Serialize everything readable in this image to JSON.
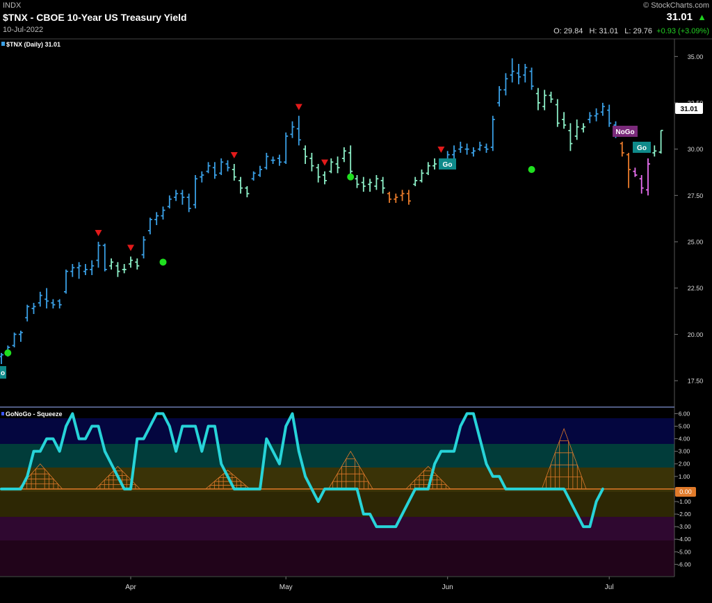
{
  "header": {
    "exchange": "INDX",
    "title": "$TNX - CBOE 10-Year US Treasury Yield",
    "date": "10-Jul-2022",
    "copyright": "© StockCharts.com",
    "last": "31.01",
    "open_label": "O:",
    "open": "29.84",
    "high_label": "H:",
    "high": "31.01",
    "low_label": "L:",
    "low": "29.76",
    "change": "+0.93 (+3.09%)"
  },
  "price_panel": {
    "legend": "$TNX (Daily) 31.01",
    "last_badge": "31.01",
    "y_ticks": [
      "35.00",
      "32.50",
      "30.00",
      "27.50",
      "25.00",
      "22.50",
      "20.00",
      "17.50"
    ],
    "labels": {
      "go": "Go",
      "nogo": "NoGo",
      "go_partial": "o"
    }
  },
  "oscillator_panel": {
    "legend": "GoNoGo - Squeeze",
    "y_ticks": [
      "6.00",
      "5.00",
      "4.00",
      "3.00",
      "2.00",
      "1.00",
      "0.00",
      "-1.00",
      "-2.00",
      "-3.00",
      "-4.00",
      "-5.00",
      "-6.00"
    ],
    "zero_badge": "0.00"
  },
  "x_axis": {
    "labels": [
      "Apr",
      "May",
      "Jun",
      "Jul"
    ]
  },
  "colors": {
    "go_strong": "#3aa0e6",
    "go_weak": "#8df0c8",
    "nogo_weak": "#e87a2a",
    "nogo_strong": "#e86ff0",
    "oscillator_line": "#27d3d8",
    "zero_line": "#e07a2a",
    "up_arrow": "#1fd11f",
    "red_marker": "#e31a1a",
    "green_dot": "#1fe01f"
  },
  "chart_data": [
    {
      "type": "ohlc",
      "series_name": "$TNX (Daily)",
      "ylim": [
        16.3,
        35.8
      ],
      "x_labels": [
        "Apr",
        "May",
        "Jun",
        "Jul"
      ],
      "color_regimes": [
        "go_strong",
        "go_weak",
        "nogo_weak",
        "nogo_strong"
      ],
      "bars": [
        {
          "o": 18.8,
          "h": 19.0,
          "l": 18.4,
          "c": 18.9,
          "k": "go_strong"
        },
        {
          "o": 18.9,
          "h": 19.4,
          "l": 18.8,
          "c": 19.3,
          "k": "go_strong"
        },
        {
          "o": 19.4,
          "h": 20.1,
          "l": 19.3,
          "c": 20.0,
          "k": "go_strong"
        },
        {
          "o": 20.0,
          "h": 20.2,
          "l": 19.6,
          "c": 20.1,
          "k": "go_strong"
        },
        {
          "o": 20.9,
          "h": 21.6,
          "l": 20.7,
          "c": 21.5,
          "k": "go_strong"
        },
        {
          "o": 21.4,
          "h": 21.7,
          "l": 21.1,
          "c": 21.5,
          "k": "go_strong"
        },
        {
          "o": 21.7,
          "h": 22.3,
          "l": 21.5,
          "c": 22.1,
          "k": "go_strong"
        },
        {
          "o": 21.9,
          "h": 22.5,
          "l": 21.4,
          "c": 21.8,
          "k": "go_strong"
        },
        {
          "o": 21.7,
          "h": 21.9,
          "l": 21.4,
          "c": 21.6,
          "k": "go_strong"
        },
        {
          "o": 21.8,
          "h": 21.9,
          "l": 21.4,
          "c": 21.6,
          "k": "go_strong"
        },
        {
          "o": 22.3,
          "h": 23.5,
          "l": 22.2,
          "c": 23.4,
          "k": "go_strong"
        },
        {
          "o": 23.4,
          "h": 23.8,
          "l": 23.1,
          "c": 23.6,
          "k": "go_strong"
        },
        {
          "o": 23.6,
          "h": 23.9,
          "l": 23.0,
          "c": 23.7,
          "k": "go_strong"
        },
        {
          "o": 23.4,
          "h": 23.8,
          "l": 23.2,
          "c": 23.5,
          "k": "go_strong"
        },
        {
          "o": 23.5,
          "h": 24.0,
          "l": 23.2,
          "c": 23.7,
          "k": "go_strong"
        },
        {
          "o": 24.0,
          "h": 25.0,
          "l": 23.6,
          "c": 24.8,
          "k": "go_strong"
        },
        {
          "o": 24.8,
          "h": 24.9,
          "l": 23.4,
          "c": 23.5,
          "k": "go_strong"
        },
        {
          "o": 23.7,
          "h": 24.1,
          "l": 23.5,
          "c": 23.9,
          "k": "go_weak"
        },
        {
          "o": 23.7,
          "h": 23.9,
          "l": 23.1,
          "c": 23.4,
          "k": "go_weak"
        },
        {
          "o": 23.5,
          "h": 23.8,
          "l": 23.3,
          "c": 23.5,
          "k": "go_weak"
        },
        {
          "o": 23.8,
          "h": 24.2,
          "l": 23.6,
          "c": 24.0,
          "k": "go_weak"
        },
        {
          "o": 23.9,
          "h": 24.1,
          "l": 23.5,
          "c": 23.7,
          "k": "go_weak"
        },
        {
          "o": 24.3,
          "h": 25.3,
          "l": 24.1,
          "c": 25.1,
          "k": "go_strong"
        },
        {
          "o": 25.6,
          "h": 26.3,
          "l": 25.4,
          "c": 26.2,
          "k": "go_strong"
        },
        {
          "o": 26.2,
          "h": 26.6,
          "l": 25.9,
          "c": 26.4,
          "k": "go_strong"
        },
        {
          "o": 26.4,
          "h": 26.9,
          "l": 26.2,
          "c": 26.7,
          "k": "go_strong"
        },
        {
          "o": 26.9,
          "h": 27.5,
          "l": 26.8,
          "c": 27.3,
          "k": "go_strong"
        },
        {
          "o": 27.4,
          "h": 27.8,
          "l": 27.2,
          "c": 27.6,
          "k": "go_strong"
        },
        {
          "o": 27.6,
          "h": 27.8,
          "l": 27.0,
          "c": 27.4,
          "k": "go_strong"
        },
        {
          "o": 27.4,
          "h": 27.6,
          "l": 26.6,
          "c": 26.8,
          "k": "go_strong"
        },
        {
          "o": 27.0,
          "h": 28.6,
          "l": 26.8,
          "c": 28.4,
          "k": "go_strong"
        },
        {
          "o": 28.5,
          "h": 28.8,
          "l": 28.2,
          "c": 28.6,
          "k": "go_strong"
        },
        {
          "o": 28.8,
          "h": 29.3,
          "l": 28.7,
          "c": 29.1,
          "k": "go_strong"
        },
        {
          "o": 29.0,
          "h": 29.3,
          "l": 28.4,
          "c": 28.6,
          "k": "go_strong"
        },
        {
          "o": 28.7,
          "h": 29.5,
          "l": 28.6,
          "c": 29.3,
          "k": "go_strong"
        },
        {
          "o": 29.2,
          "h": 29.4,
          "l": 28.8,
          "c": 29.0,
          "k": "go_strong"
        },
        {
          "o": 28.9,
          "h": 29.2,
          "l": 28.3,
          "c": 28.5,
          "k": "go_weak"
        },
        {
          "o": 28.3,
          "h": 28.5,
          "l": 27.6,
          "c": 27.9,
          "k": "go_weak"
        },
        {
          "o": 27.9,
          "h": 28.0,
          "l": 27.4,
          "c": 27.6,
          "k": "go_weak"
        },
        {
          "o": 28.4,
          "h": 28.8,
          "l": 28.3,
          "c": 28.7,
          "k": "go_strong"
        },
        {
          "o": 28.6,
          "h": 29.1,
          "l": 28.5,
          "c": 28.9,
          "k": "go_strong"
        },
        {
          "o": 29.0,
          "h": 29.8,
          "l": 28.9,
          "c": 29.6,
          "k": "go_strong"
        },
        {
          "o": 29.4,
          "h": 29.6,
          "l": 29.2,
          "c": 29.4,
          "k": "go_strong"
        },
        {
          "o": 29.5,
          "h": 29.7,
          "l": 29.1,
          "c": 29.3,
          "k": "go_strong"
        },
        {
          "o": 29.3,
          "h": 30.9,
          "l": 29.2,
          "c": 30.7,
          "k": "go_strong"
        },
        {
          "o": 30.8,
          "h": 31.5,
          "l": 30.6,
          "c": 31.2,
          "k": "go_strong"
        },
        {
          "o": 31.1,
          "h": 31.8,
          "l": 30.2,
          "c": 30.5,
          "k": "go_strong"
        },
        {
          "o": 30.0,
          "h": 30.2,
          "l": 29.2,
          "c": 29.6,
          "k": "go_weak"
        },
        {
          "o": 29.5,
          "h": 29.8,
          "l": 28.8,
          "c": 29.1,
          "k": "go_weak"
        },
        {
          "o": 29.0,
          "h": 29.2,
          "l": 28.2,
          "c": 28.5,
          "k": "go_weak"
        },
        {
          "o": 28.6,
          "h": 28.8,
          "l": 28.1,
          "c": 28.3,
          "k": "go_weak"
        },
        {
          "o": 28.8,
          "h": 29.5,
          "l": 28.7,
          "c": 29.3,
          "k": "go_weak"
        },
        {
          "o": 29.2,
          "h": 29.6,
          "l": 28.7,
          "c": 29.0,
          "k": "go_weak"
        },
        {
          "o": 29.5,
          "h": 30.1,
          "l": 29.3,
          "c": 29.9,
          "k": "go_weak"
        },
        {
          "o": 29.8,
          "h": 30.2,
          "l": 28.6,
          "c": 28.8,
          "k": "go_weak"
        },
        {
          "o": 28.4,
          "h": 28.6,
          "l": 27.9,
          "c": 28.1,
          "k": "go_weak"
        },
        {
          "o": 28.2,
          "h": 28.5,
          "l": 27.7,
          "c": 28.0,
          "k": "go_weak"
        },
        {
          "o": 28.1,
          "h": 28.4,
          "l": 27.7,
          "c": 28.2,
          "k": "go_weak"
        },
        {
          "o": 28.0,
          "h": 28.6,
          "l": 27.8,
          "c": 28.4,
          "k": "go_weak"
        },
        {
          "o": 28.3,
          "h": 28.5,
          "l": 27.6,
          "c": 27.9,
          "k": "go_weak"
        },
        {
          "o": 27.6,
          "h": 27.7,
          "l": 27.1,
          "c": 27.3,
          "k": "nogo_weak"
        },
        {
          "o": 27.3,
          "h": 27.6,
          "l": 27.1,
          "c": 27.4,
          "k": "nogo_weak"
        },
        {
          "o": 27.5,
          "h": 27.8,
          "l": 27.2,
          "c": 27.6,
          "k": "nogo_weak"
        },
        {
          "o": 27.6,
          "h": 27.8,
          "l": 27.0,
          "c": 27.2,
          "k": "nogo_weak"
        },
        {
          "o": 28.1,
          "h": 28.5,
          "l": 28.0,
          "c": 28.3,
          "k": "go_weak"
        },
        {
          "o": 28.3,
          "h": 28.9,
          "l": 28.2,
          "c": 28.7,
          "k": "go_weak"
        },
        {
          "o": 28.7,
          "h": 29.3,
          "l": 28.6,
          "c": 29.1,
          "k": "go_weak"
        },
        {
          "o": 29.1,
          "h": 29.5,
          "l": 28.9,
          "c": 29.2,
          "k": "go_weak"
        },
        {
          "o": 29.2,
          "h": 29.5,
          "l": 29.0,
          "c": 29.3,
          "k": "go_weak"
        },
        {
          "o": 29.4,
          "h": 29.9,
          "l": 29.2,
          "c": 29.7,
          "k": "go_strong"
        },
        {
          "o": 29.7,
          "h": 30.2,
          "l": 29.5,
          "c": 29.9,
          "k": "go_strong"
        },
        {
          "o": 30.0,
          "h": 30.4,
          "l": 29.8,
          "c": 30.1,
          "k": "go_strong"
        },
        {
          "o": 30.0,
          "h": 30.3,
          "l": 29.7,
          "c": 30.0,
          "k": "go_strong"
        },
        {
          "o": 29.8,
          "h": 30.1,
          "l": 29.6,
          "c": 29.9,
          "k": "go_strong"
        },
        {
          "o": 30.0,
          "h": 30.4,
          "l": 29.9,
          "c": 30.2,
          "k": "go_strong"
        },
        {
          "o": 30.1,
          "h": 30.3,
          "l": 29.8,
          "c": 30.0,
          "k": "go_strong"
        },
        {
          "o": 30.1,
          "h": 31.8,
          "l": 29.9,
          "c": 31.6,
          "k": "go_strong"
        },
        {
          "o": 32.5,
          "h": 33.4,
          "l": 32.3,
          "c": 33.2,
          "k": "go_strong"
        },
        {
          "o": 33.2,
          "h": 34.1,
          "l": 32.9,
          "c": 33.8,
          "k": "go_strong"
        },
        {
          "o": 34.0,
          "h": 34.9,
          "l": 33.6,
          "c": 34.2,
          "k": "go_strong"
        },
        {
          "o": 34.1,
          "h": 34.6,
          "l": 33.5,
          "c": 33.9,
          "k": "go_strong"
        },
        {
          "o": 34.0,
          "h": 34.6,
          "l": 33.6,
          "c": 34.4,
          "k": "go_strong"
        },
        {
          "o": 34.2,
          "h": 34.4,
          "l": 33.2,
          "c": 33.4,
          "k": "go_strong"
        },
        {
          "o": 33.0,
          "h": 33.3,
          "l": 32.1,
          "c": 32.5,
          "k": "go_weak"
        },
        {
          "o": 32.3,
          "h": 33.2,
          "l": 32.1,
          "c": 32.9,
          "k": "go_weak"
        },
        {
          "o": 32.9,
          "h": 33.1,
          "l": 32.5,
          "c": 32.7,
          "k": "go_weak"
        },
        {
          "o": 32.4,
          "h": 32.7,
          "l": 31.2,
          "c": 31.4,
          "k": "go_weak"
        },
        {
          "o": 31.6,
          "h": 32.0,
          "l": 31.1,
          "c": 31.3,
          "k": "go_weak"
        },
        {
          "o": 31.0,
          "h": 31.4,
          "l": 29.9,
          "c": 30.3,
          "k": "go_weak"
        },
        {
          "o": 30.7,
          "h": 31.6,
          "l": 30.5,
          "c": 31.2,
          "k": "go_weak"
        },
        {
          "o": 31.1,
          "h": 31.4,
          "l": 30.9,
          "c": 31.2,
          "k": "go_weak"
        },
        {
          "o": 31.6,
          "h": 32.0,
          "l": 31.4,
          "c": 31.8,
          "k": "go_strong"
        },
        {
          "o": 31.8,
          "h": 32.2,
          "l": 31.5,
          "c": 31.9,
          "k": "go_strong"
        },
        {
          "o": 32.0,
          "h": 32.5,
          "l": 31.8,
          "c": 32.3,
          "k": "go_strong"
        },
        {
          "o": 32.1,
          "h": 32.4,
          "l": 31.2,
          "c": 31.4,
          "k": "go_strong"
        },
        {
          "o": 31.3,
          "h": 31.5,
          "l": 30.6,
          "c": 30.8,
          "k": "go_strong"
        },
        {
          "o": 30.3,
          "h": 30.4,
          "l": 29.6,
          "c": 29.8,
          "k": "nogo_weak"
        },
        {
          "o": 29.7,
          "h": 29.8,
          "l": 27.9,
          "c": 28.9,
          "k": "nogo_weak"
        },
        {
          "o": 28.8,
          "h": 29.0,
          "l": 28.5,
          "c": 28.6,
          "k": "nogo_strong"
        },
        {
          "o": 28.4,
          "h": 28.6,
          "l": 27.6,
          "c": 27.9,
          "k": "nogo_strong"
        },
        {
          "o": 27.8,
          "h": 29.5,
          "l": 27.5,
          "c": 29.2,
          "k": "nogo_strong"
        },
        {
          "o": 29.8,
          "h": 30.2,
          "l": 29.6,
          "c": 29.9,
          "k": "go_weak"
        },
        {
          "o": 29.84,
          "h": 31.01,
          "l": 29.76,
          "c": 31.01,
          "k": "go_weak"
        }
      ],
      "red_triangles": [
        15,
        20,
        36,
        46,
        50,
        68
      ],
      "green_dots": [
        {
          "bar": 1,
          "value": 19.0
        },
        {
          "bar": 25,
          "value": 23.9
        },
        {
          "bar": 54,
          "value": 28.5
        },
        {
          "bar": 82,
          "value": 28.9
        }
      ]
    },
    {
      "type": "line",
      "title": "GoNoGo - Squeeze",
      "ylim": [
        -6.7,
        6.3
      ],
      "zero_line": 0,
      "line_values": [
        0,
        0,
        0,
        0,
        1,
        3,
        3,
        4,
        4,
        3,
        5,
        6,
        4,
        4,
        5,
        5,
        3,
        2,
        1,
        0,
        0,
        4,
        4,
        5,
        6,
        6,
        5,
        3,
        5,
        5,
        5,
        3,
        5,
        5,
        2,
        1,
        0,
        0,
        0,
        0,
        0,
        4,
        3,
        2,
        5,
        6,
        3,
        1,
        0,
        -1,
        0,
        0,
        0,
        0,
        0,
        0,
        -2,
        -2,
        -3,
        -3,
        -3,
        -3,
        -2,
        -1,
        0,
        0,
        0,
        2,
        3,
        3,
        3,
        5,
        6,
        6,
        4,
        2,
        1,
        1,
        0,
        0,
        0,
        0,
        0,
        0,
        0,
        0,
        0,
        0,
        -1,
        -2,
        -3,
        -3,
        -1,
        0
      ],
      "squeeze_peaks": [
        {
          "center": 6,
          "height": 2.0
        },
        {
          "center": 18,
          "height": 1.8
        },
        {
          "center": 35,
          "height": 1.5
        },
        {
          "center": 54,
          "height": 3.0
        },
        {
          "center": 66,
          "height": 1.8
        },
        {
          "center": 87,
          "height": 4.8
        }
      ]
    }
  ]
}
